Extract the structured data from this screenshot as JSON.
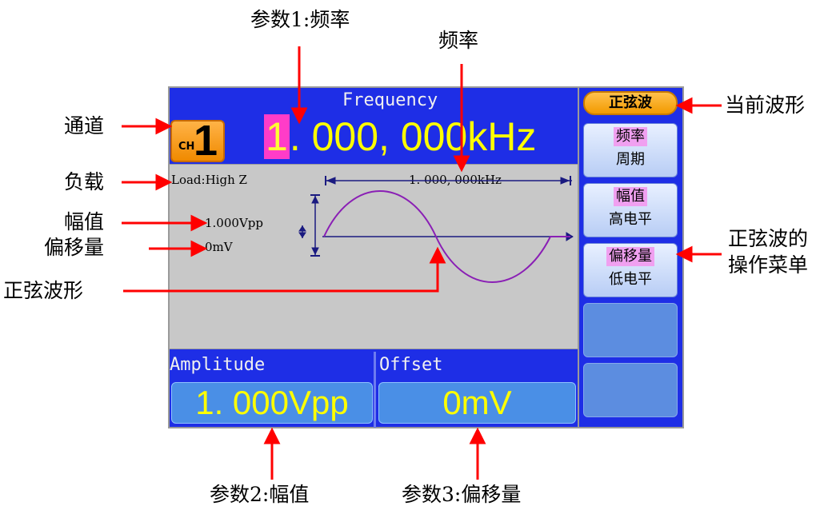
{
  "screen": {
    "channel": {
      "ch": "CH",
      "number": "1"
    },
    "freq_title": "Frequency",
    "freq_cursor_digit": "1",
    "freq_rest": ". 000, 000kHz",
    "load": "Load:High Z",
    "wave_freq": "1. 000, 000kHz",
    "wave_amp": "1.000Vpp",
    "wave_offset": "0mV",
    "amplitude_label": "Amplitude",
    "amplitude_value": "1. 000Vpp",
    "offset_label": "Offset",
    "offset_value": "0mV"
  },
  "menu": {
    "title": "正弦波",
    "items": [
      {
        "line1": "频率",
        "line2": "周期"
      },
      {
        "line1": "幅值",
        "line2": "高电平"
      },
      {
        "line1": "偏移量",
        "line2": "低电平"
      },
      {
        "line1": "",
        "line2": ""
      },
      {
        "line1": "",
        "line2": ""
      }
    ]
  },
  "annotations": {
    "param1": "参数1:频率",
    "freq": "频率",
    "channel": "通道",
    "load": "负载",
    "amplitude": "幅值",
    "offset": "偏移量",
    "sine_wave": "正弦波形",
    "current_wave": "当前波形",
    "sine_menu_l1": "正弦波的",
    "sine_menu_l2": "操作菜单",
    "param2": "参数2:幅值",
    "param3": "参数3:偏移量"
  },
  "colors": {
    "screen_blue": "#1e2ee6",
    "value_yellow": "#ffff00",
    "cursor_magenta": "#ff3cc8",
    "arrow_red": "#ff0000",
    "wave_purple": "#8a1fb5",
    "axis_navy": "#1a1a80",
    "badge_orange": "#f29a00"
  }
}
